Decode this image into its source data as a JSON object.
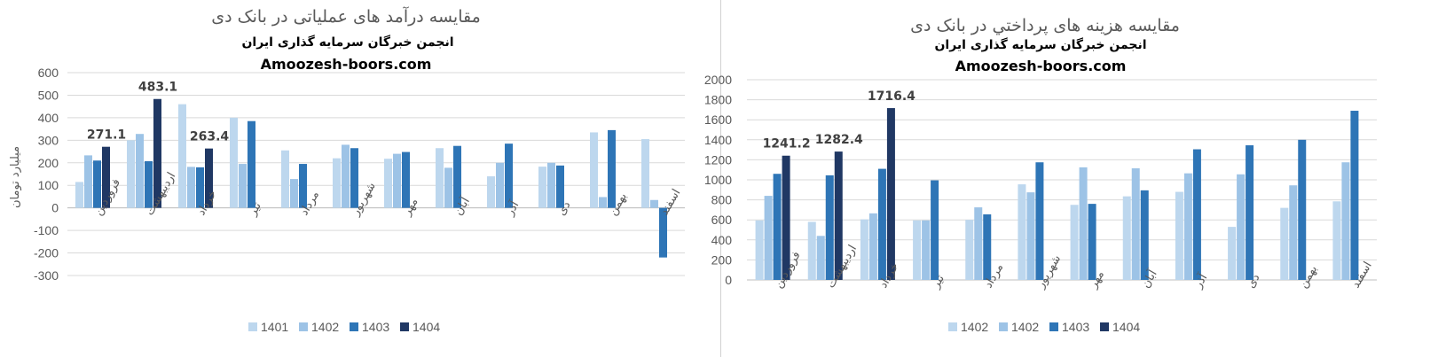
{
  "colors": {
    "s1": "#bdd7ee",
    "s2": "#9dc3e6",
    "s3": "#2e75b6",
    "s4": "#203864",
    "grid": "#d9d9d9",
    "axis": "#bfbfbf"
  },
  "chart_data": [
    {
      "type": "bar",
      "title": "مقایسه درآمد های عملیاتی در بانک دی",
      "subtitle": "انجمن خبرگان سرمایه گذاری ایران",
      "site": "Amoozesh-boors.com",
      "ylabel": "میلیارد تومان",
      "xlabel": "",
      "ylim": [
        -300,
        600
      ],
      "yticks": [
        -300,
        -200,
        -100,
        0,
        100,
        200,
        300,
        400,
        500,
        600
      ],
      "grid": true,
      "legend_position": "bottom",
      "categories": [
        "فروردین",
        "اردیبهشت",
        "خرداد",
        "تیر",
        "مرداد",
        "شهریور",
        "مهر",
        "آبان",
        "آذر",
        "دی",
        "بهمن",
        "اسفند"
      ],
      "series": [
        {
          "name": "1401",
          "color": "#bdd7ee",
          "values": [
            115,
            300,
            460,
            400,
            255,
            220,
            218,
            265,
            140,
            183,
            335,
            305
          ]
        },
        {
          "name": "1402",
          "color": "#9dc3e6",
          "values": [
            233,
            328,
            182,
            195,
            128,
            280,
            240,
            178,
            200,
            200,
            48,
            35
          ]
        },
        {
          "name": "1403",
          "color": "#2e75b6",
          "values": [
            210,
            207,
            180,
            385,
            195,
            265,
            248,
            275,
            285,
            188,
            345,
            -220
          ]
        },
        {
          "name": "1404",
          "color": "#203864",
          "values": [
            271.1,
            483.1,
            263.4,
            null,
            null,
            null,
            null,
            null,
            null,
            null,
            null,
            null
          ]
        }
      ],
      "data_labels": [
        {
          "series": 3,
          "index": 0,
          "text": "271.1"
        },
        {
          "series": 3,
          "index": 1,
          "text": "483.1"
        },
        {
          "series": 3,
          "index": 2,
          "text": "263.4"
        }
      ]
    },
    {
      "type": "bar",
      "title": "مقایسه هزینه های پرداختي در بانک دی",
      "subtitle": "انجمن خبرگان سرمایه گذاری ایران",
      "site": "Amoozesh-boors.com",
      "ylabel": "",
      "xlabel": "",
      "ylim": [
        0,
        2000
      ],
      "yticks": [
        0,
        200,
        400,
        600,
        800,
        1000,
        1200,
        1400,
        1600,
        1800,
        2000
      ],
      "grid": true,
      "legend_position": "bottom",
      "categories": [
        "فروردین",
        "اردیبهشت",
        "خرداد",
        "تیر",
        "مرداد",
        "شهریور",
        "مهر",
        "آبان",
        "آذر",
        "دی",
        "بهمن",
        "اسفند"
      ],
      "series": [
        {
          "name": "1402",
          "color": "#bdd7ee",
          "values": [
            595,
            580,
            605,
            595,
            600,
            955,
            750,
            835,
            880,
            530,
            720,
            785
          ]
        },
        {
          "name": "1402",
          "color": "#9dc3e6",
          "values": [
            840,
            440,
            665,
            595,
            725,
            875,
            1125,
            1115,
            1065,
            1055,
            945,
            1175
          ]
        },
        {
          "name": "1403",
          "color": "#2e75b6",
          "values": [
            1060,
            1045,
            1110,
            995,
            655,
            1175,
            760,
            895,
            1305,
            1345,
            1400,
            1690
          ]
        },
        {
          "name": "1404",
          "color": "#203864",
          "values": [
            1241.2,
            1282.4,
            1716.4,
            null,
            null,
            null,
            null,
            null,
            null,
            null,
            null,
            null
          ]
        }
      ],
      "data_labels": [
        {
          "series": 3,
          "index": 0,
          "text": "1241.2"
        },
        {
          "series": 3,
          "index": 1,
          "text": "1282.4"
        },
        {
          "series": 3,
          "index": 2,
          "text": "1716.4"
        }
      ]
    }
  ]
}
